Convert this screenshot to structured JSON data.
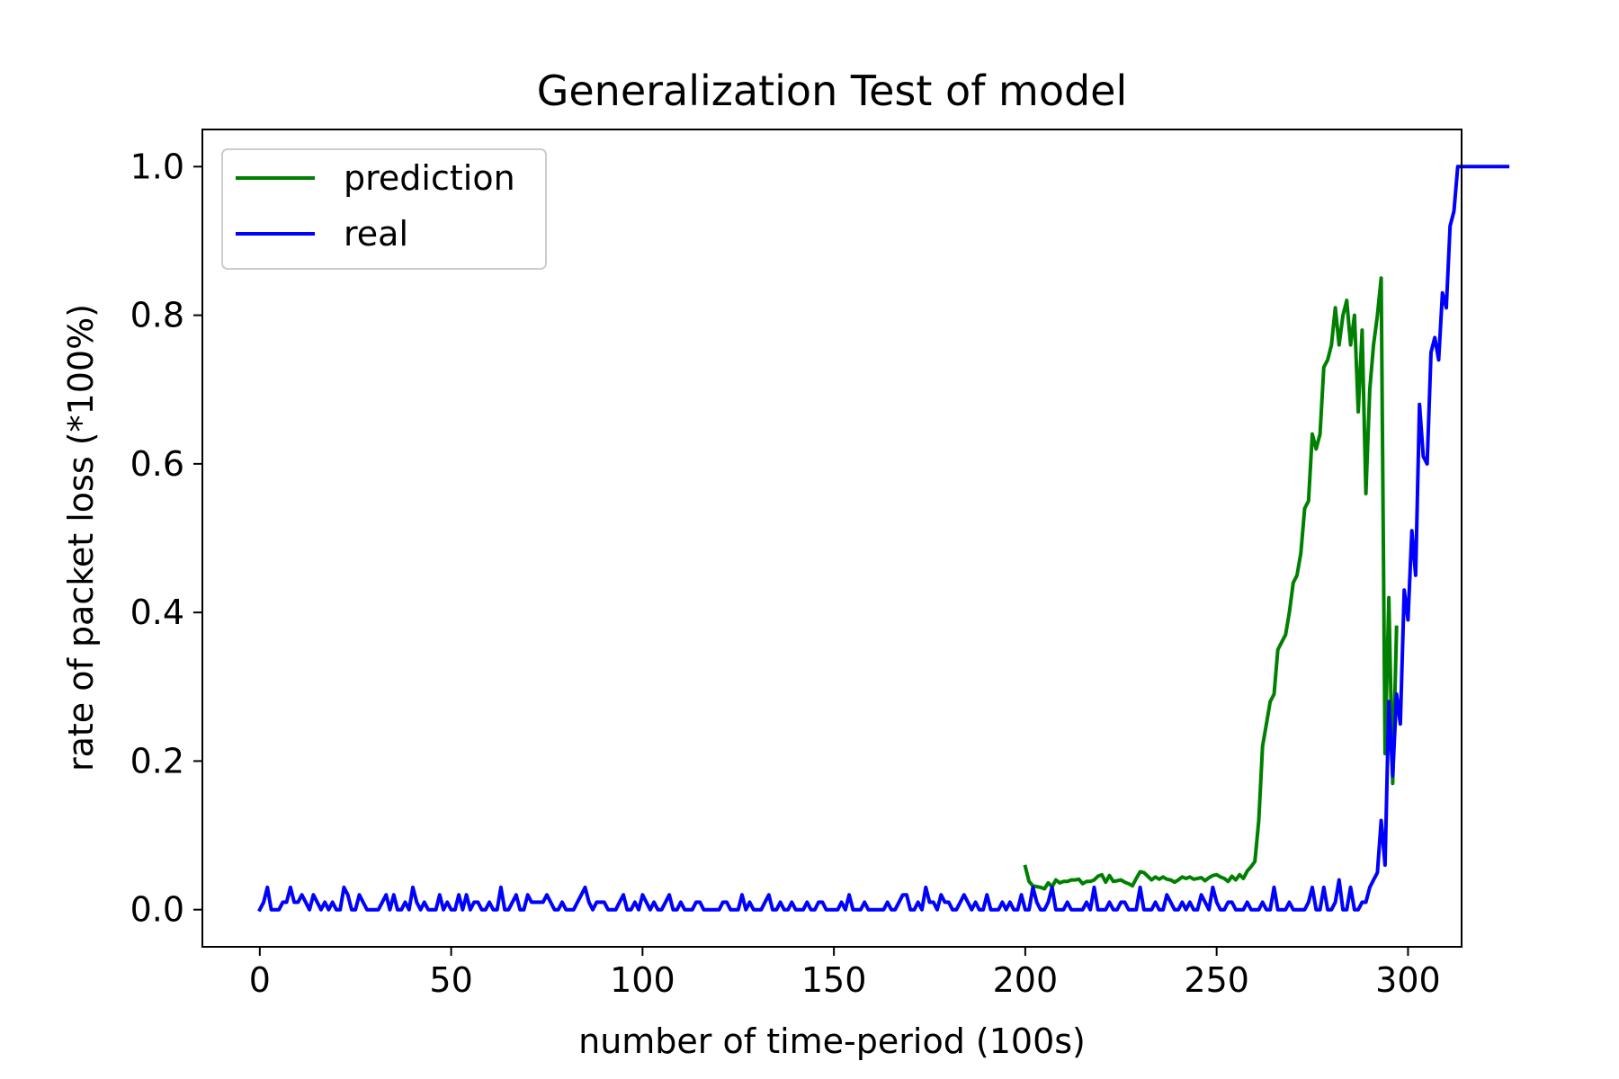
{
  "chart_data": {
    "type": "line",
    "title": "Generalization Test of model",
    "xlabel": "number of time-period (100s)",
    "ylabel": "rate of packet loss (*100%)",
    "xlim": [
      -15,
      314
    ],
    "ylim": [
      -0.05,
      1.05
    ],
    "xticks": [
      0,
      50,
      100,
      150,
      200,
      250,
      300
    ],
    "yticks": [
      0.0,
      0.2,
      0.4,
      0.6,
      0.8,
      1.0
    ],
    "xtick_labels": [
      "0",
      "50",
      "100",
      "150",
      "200",
      "250",
      "300"
    ],
    "ytick_labels": [
      "0.0",
      "0.2",
      "0.4",
      "0.6",
      "0.8",
      "1.0"
    ],
    "grid": false,
    "legend_position": "top-left",
    "series": [
      {
        "name": "prediction",
        "color": "#008000",
        "x_start": 200,
        "values": [
          0.058,
          0.038,
          0.032,
          0.031,
          0.03,
          0.028,
          0.036,
          0.031,
          0.04,
          0.036,
          0.038,
          0.038,
          0.04,
          0.04,
          0.041,
          0.035,
          0.038,
          0.038,
          0.04,
          0.045,
          0.047,
          0.037,
          0.046,
          0.038,
          0.039,
          0.04,
          0.037,
          0.035,
          0.032,
          0.042,
          0.051,
          0.05,
          0.045,
          0.04,
          0.044,
          0.041,
          0.044,
          0.041,
          0.04,
          0.037,
          0.04,
          0.044,
          0.042,
          0.044,
          0.041,
          0.042,
          0.043,
          0.039,
          0.043,
          0.046,
          0.047,
          0.044,
          0.042,
          0.038,
          0.045,
          0.04,
          0.047,
          0.042,
          0.052,
          0.058,
          0.065,
          0.12,
          0.22,
          0.25,
          0.28,
          0.29,
          0.35,
          0.36,
          0.37,
          0.4,
          0.44,
          0.45,
          0.48,
          0.54,
          0.55,
          0.64,
          0.62,
          0.64,
          0.73,
          0.74,
          0.76,
          0.81,
          0.76,
          0.8,
          0.82,
          0.76,
          0.8,
          0.67,
          0.78,
          0.56,
          0.7,
          0.76,
          0.8,
          0.85,
          0.21,
          0.42,
          0.17,
          0.38
        ]
      },
      {
        "name": "real",
        "color": "#0000ff",
        "x_start": 0,
        "values": [
          0.0,
          0.01,
          0.03,
          0.0,
          0.0,
          0.0,
          0.01,
          0.01,
          0.03,
          0.01,
          0.01,
          0.02,
          0.01,
          0.0,
          0.02,
          0.01,
          0.0,
          0.01,
          0.0,
          0.01,
          0.0,
          0.0,
          0.03,
          0.02,
          0.0,
          0.0,
          0.02,
          0.01,
          0.0,
          0.0,
          0.0,
          0.0,
          0.01,
          0.02,
          0.0,
          0.02,
          0.0,
          0.0,
          0.01,
          0.0,
          0.03,
          0.01,
          0.0,
          0.01,
          0.0,
          0.0,
          0.0,
          0.02,
          0.0,
          0.01,
          0.0,
          0.0,
          0.02,
          0.0,
          0.02,
          0.0,
          0.01,
          0.01,
          0.0,
          0.0,
          0.01,
          0.0,
          0.0,
          0.03,
          0.0,
          0.0,
          0.01,
          0.02,
          0.0,
          0.0,
          0.02,
          0.01,
          0.01,
          0.01,
          0.01,
          0.02,
          0.01,
          0.0,
          0.0,
          0.01,
          0.0,
          0.0,
          0.0,
          0.01,
          0.02,
          0.03,
          0.01,
          0.0,
          0.01,
          0.01,
          0.01,
          0.0,
          0.0,
          0.0,
          0.01,
          0.02,
          0.0,
          0.0,
          0.01,
          0.0,
          0.02,
          0.01,
          0.0,
          0.01,
          0.0,
          0.0,
          0.01,
          0.02,
          0.0,
          0.0,
          0.01,
          0.0,
          0.0,
          0.0,
          0.01,
          0.01,
          0.0,
          0.0,
          0.0,
          0.0,
          0.0,
          0.01,
          0.01,
          0.0,
          0.0,
          0.0,
          0.02,
          0.0,
          0.01,
          0.0,
          0.0,
          0.0,
          0.01,
          0.02,
          0.0,
          0.0,
          0.01,
          0.0,
          0.0,
          0.01,
          0.0,
          0.0,
          0.0,
          0.01,
          0.0,
          0.0,
          0.01,
          0.01,
          0.0,
          0.0,
          0.0,
          0.0,
          0.01,
          0.0,
          0.02,
          0.0,
          0.0,
          0.0,
          0.01,
          0.0,
          0.0,
          0.0,
          0.0,
          0.0,
          0.01,
          0.0,
          0.0,
          0.01,
          0.02,
          0.02,
          0.0,
          0.0,
          0.01,
          0.0,
          0.03,
          0.01,
          0.01,
          0.0,
          0.02,
          0.01,
          0.01,
          0.0,
          0.0,
          0.01,
          0.02,
          0.01,
          0.0,
          0.01,
          0.0,
          0.0,
          0.02,
          0.0,
          0.0,
          0.0,
          0.01,
          0.0,
          0.01,
          0.0,
          0.0,
          0.02,
          0.0,
          0.0,
          0.03,
          0.01,
          0.0,
          0.0,
          0.01,
          0.03,
          0.0,
          0.0,
          0.0,
          0.01,
          0.0,
          0.0,
          0.0,
          0.0,
          0.01,
          0.0,
          0.03,
          0.0,
          0.0,
          0.0,
          0.01,
          0.0,
          0.0,
          0.01,
          0.01,
          0.0,
          0.0,
          0.0,
          0.03,
          0.0,
          0.0,
          0.0,
          0.01,
          0.0,
          0.0,
          0.02,
          0.01,
          0.0,
          0.0,
          0.01,
          0.0,
          0.01,
          0.0,
          0.0,
          0.02,
          0.01,
          0.0,
          0.03,
          0.01,
          0.0,
          0.0,
          0.01,
          0.01,
          0.0,
          0.0,
          0.0,
          0.01,
          0.0,
          0.0,
          0.0,
          0.01,
          0.0,
          0.0,
          0.03,
          0.0,
          0.0,
          0.0,
          0.01,
          0.0,
          0.0,
          0.0,
          0.0,
          0.01,
          0.03,
          0.0,
          0.0,
          0.03,
          0.0,
          0.0,
          0.01,
          0.04,
          0.0,
          0.0,
          0.03,
          0.0,
          0.0,
          0.01,
          0.01,
          0.03,
          0.04,
          0.05,
          0.12,
          0.06,
          0.28,
          0.18,
          0.29,
          0.25,
          0.43,
          0.39,
          0.51,
          0.45,
          0.68,
          0.61,
          0.6,
          0.75,
          0.77,
          0.74,
          0.83,
          0.81,
          0.92,
          0.94,
          1.0,
          1.0,
          1.0,
          1.0,
          1.0,
          1.0,
          1.0,
          1.0,
          1.0,
          1.0,
          1.0,
          1.0,
          1.0,
          1.0
        ]
      }
    ]
  }
}
